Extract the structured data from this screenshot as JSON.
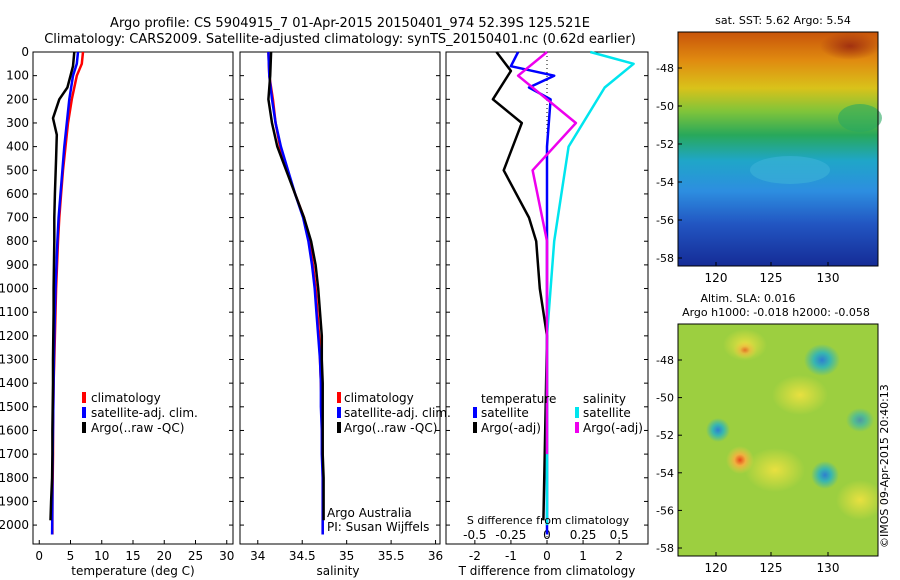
{
  "header": {
    "line1": "Argo profile: CS 5904915_7 01-Apr-2015 20150401_974 52.39S 125.521E",
    "line2": "Climatology: CARS2009. Satellite-adjusted climatology: synTS_20150401.nc (0.62d earlier)"
  },
  "colors": {
    "climatology": "#ff0000",
    "satellite": "#0000ff",
    "argo": "#000000",
    "sat_s": "#00e5ee",
    "argo_s": "#ee00ee"
  },
  "depth_ticks": [
    0,
    100,
    200,
    300,
    400,
    500,
    600,
    700,
    800,
    900,
    1000,
    1100,
    1200,
    1300,
    1400,
    1500,
    1600,
    1700,
    1800,
    1900,
    2000
  ],
  "temperature_panel": {
    "xlabel": "temperature (deg C)",
    "xlim": [
      -1,
      31
    ],
    "xticks": [
      0,
      5,
      10,
      15,
      20,
      25,
      30
    ],
    "legend": [
      "climatology",
      "satellite-adj. clim.",
      "Argo(..raw -QC)"
    ]
  },
  "salinity_panel": {
    "xlabel": "salinity",
    "xlim": [
      33.8,
      36.05
    ],
    "xticks": [
      "34",
      "34.5",
      "35",
      "35.5",
      "36"
    ],
    "legend": [
      "climatology",
      "satellite-adj. clim.",
      "Argo(..raw -QC)"
    ],
    "note1": "Argo Australia",
    "note2": "PI: Susan Wijffels"
  },
  "diff_panel": {
    "xlabel": "T difference from climatology",
    "xticks_t": [
      "-2",
      "-1",
      "0",
      "1",
      "2"
    ],
    "xlabel_s": "S difference from climatology",
    "xticks_s": [
      "-0.5",
      "-0.25",
      "0",
      "0.25",
      "0.5"
    ],
    "legend_t_title": "temperature",
    "legend_t": [
      "satellite",
      "Argo(-adj)"
    ],
    "legend_s_title": "salinity",
    "legend_s": [
      "satellite",
      "Argo(-adj)"
    ]
  },
  "sst_map": {
    "title": "sat. SST: 5.62  Argo: 5.54",
    "yticks": [
      "-48",
      "-50",
      "-52",
      "-54",
      "-56",
      "-58"
    ],
    "xticks": [
      "120",
      "125",
      "130"
    ]
  },
  "sla_map": {
    "title1": "Altim. SLA: 0.016",
    "title2": "Argo h1000: -0.018 h2000: -0.058",
    "yticks": [
      "-48",
      "-50",
      "-52",
      "-54",
      "-56",
      "-58"
    ],
    "xticks": [
      "120",
      "125",
      "130"
    ]
  },
  "credit": "©IMOS 09-Apr-2015 20:40:13",
  "chart_data": [
    {
      "type": "line",
      "name": "temperature profile",
      "y_axis": "depth",
      "ylim": [
        2080,
        0
      ],
      "series": [
        {
          "name": "climatology",
          "color": "red",
          "x": [
            7.0,
            6.8,
            6.0,
            5.2,
            4.6,
            4.2,
            3.8,
            3.5,
            3.2,
            3.0,
            2.7,
            2.6,
            2.5,
            2.4,
            2.3,
            2.25,
            2.2,
            2.2,
            2.15,
            2.1,
            2.1
          ],
          "y": [
            0,
            50,
            100,
            200,
            300,
            400,
            500,
            600,
            700,
            800,
            1000,
            1100,
            1200,
            1300,
            1400,
            1500,
            1600,
            1700,
            1800,
            1900,
            2040
          ]
        },
        {
          "name": "satellite-adj. clim.",
          "color": "blue",
          "x": [
            6.2,
            6.0,
            5.4,
            4.8,
            4.4,
            4.0,
            3.7,
            3.4,
            3.1,
            2.9,
            2.6,
            2.5,
            2.4,
            2.35,
            2.3,
            2.25,
            2.2,
            2.15,
            2.1,
            2.1,
            2.05
          ],
          "y": [
            0,
            50,
            100,
            200,
            300,
            400,
            500,
            600,
            700,
            800,
            1000,
            1100,
            1200,
            1300,
            1400,
            1500,
            1600,
            1700,
            1800,
            1900,
            2040
          ]
        },
        {
          "name": "Argo(..raw -QC)",
          "color": "black",
          "x": [
            5.6,
            5.4,
            4.5,
            3.2,
            2.2,
            2.8,
            2.7,
            2.5,
            2.4,
            2.4,
            2.3,
            2.3,
            2.25,
            2.2,
            2.2,
            2.15,
            2.1,
            2.1,
            2.05,
            1.9,
            1.8
          ],
          "y": [
            0,
            60,
            150,
            200,
            280,
            350,
            450,
            600,
            700,
            800,
            1000,
            1100,
            1200,
            1300,
            1400,
            1500,
            1600,
            1700,
            1800,
            1900,
            1980
          ]
        }
      ]
    },
    {
      "type": "line",
      "name": "salinity profile",
      "y_axis": "depth",
      "ylim": [
        2080,
        0
      ],
      "series": [
        {
          "name": "climatology",
          "color": "red",
          "x": [
            34.12,
            34.13,
            34.17,
            34.2,
            34.25,
            34.33,
            34.42,
            34.52,
            34.58,
            34.62,
            34.65,
            34.67,
            34.69,
            34.7,
            34.71,
            34.72,
            34.72,
            34.73,
            34.73,
            34.73,
            34.73
          ],
          "y": [
            0,
            100,
            200,
            300,
            400,
            500,
            600,
            700,
            800,
            900,
            1000,
            1100,
            1200,
            1300,
            1400,
            1500,
            1600,
            1700,
            1800,
            1900,
            2040
          ]
        },
        {
          "name": "satellite-adj. clim.",
          "color": "blue",
          "x": [
            34.12,
            34.13,
            34.16,
            34.2,
            34.26,
            34.34,
            34.42,
            34.51,
            34.57,
            34.61,
            34.64,
            34.66,
            34.68,
            34.7,
            34.71,
            34.71,
            34.72,
            34.72,
            34.73,
            34.73,
            34.73
          ],
          "y": [
            0,
            100,
            200,
            300,
            400,
            500,
            600,
            700,
            800,
            900,
            1000,
            1100,
            1200,
            1300,
            1400,
            1500,
            1600,
            1700,
            1800,
            1900,
            2040
          ]
        },
        {
          "name": "Argo(..raw -QC)",
          "color": "black",
          "x": [
            34.15,
            34.14,
            34.12,
            34.16,
            34.22,
            34.32,
            34.42,
            34.52,
            34.6,
            34.65,
            34.68,
            34.7,
            34.72,
            34.72,
            34.73,
            34.73,
            34.73,
            34.73,
            34.74,
            34.74,
            34.74
          ],
          "y": [
            0,
            100,
            200,
            300,
            400,
            500,
            600,
            700,
            800,
            900,
            1000,
            1100,
            1200,
            1300,
            1400,
            1500,
            1600,
            1700,
            1800,
            1900,
            1980
          ]
        }
      ]
    },
    {
      "type": "line",
      "name": "difference from climatology",
      "y_axis": "depth",
      "ylim": [
        2080,
        0
      ],
      "series": [
        {
          "name": "temperature satellite",
          "color": "blue",
          "x": [
            -0.8,
            -1.0,
            0.2,
            -0.5,
            0.1,
            0.0,
            0.0,
            0.0,
            0.0,
            0.0,
            0.0
          ],
          "y": [
            0,
            60,
            100,
            150,
            200,
            400,
            800,
            1200,
            1600,
            2000,
            2040
          ]
        },
        {
          "name": "temperature Argo(-adj)",
          "color": "black",
          "x": [
            -1.4,
            -1.0,
            -1.5,
            -0.7,
            -1.2,
            -0.5,
            -0.3,
            -0.2,
            0.0,
            -0.05,
            -0.1
          ],
          "y": [
            0,
            80,
            200,
            300,
            500,
            700,
            800,
            1000,
            1200,
            1600,
            1980
          ]
        },
        {
          "name": "salinity satellite",
          "color": "cyan",
          "x": [
            0.3,
            0.6,
            0.4,
            0.15,
            0.05,
            0.0,
            0.0,
            0.0,
            0.0
          ],
          "y": [
            0,
            50,
            150,
            400,
            800,
            1200,
            1600,
            1800,
            2000
          ]
        },
        {
          "name": "salinity Argo(-adj)",
          "color": "magenta",
          "x": [
            0.0,
            -0.2,
            0.2,
            -0.1,
            0.0,
            0.0,
            0.0,
            0.0,
            0.0
          ],
          "y": [
            0,
            100,
            300,
            500,
            800,
            1000,
            1300,
            1500,
            1700
          ]
        }
      ]
    }
  ]
}
